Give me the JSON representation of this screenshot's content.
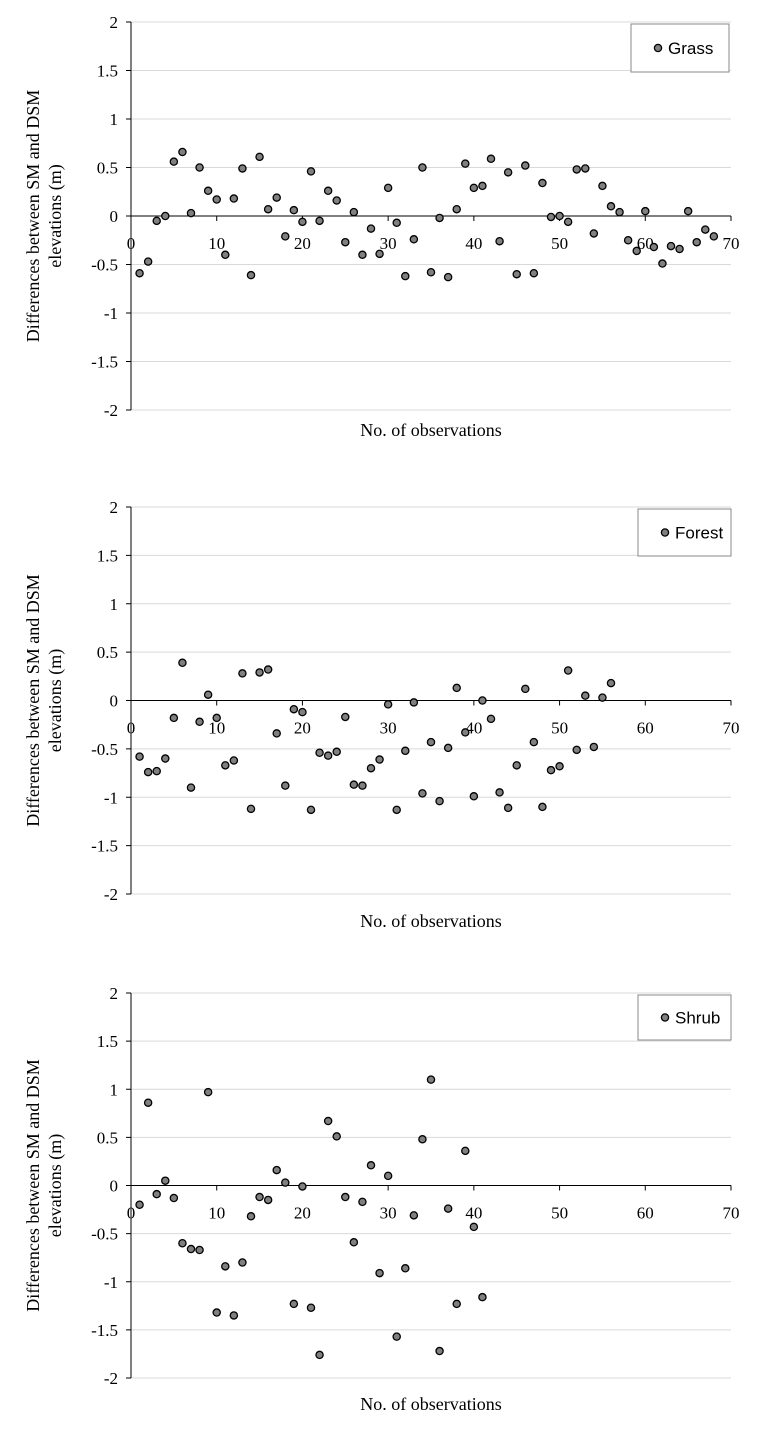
{
  "chart_data": [
    {
      "type": "scatter",
      "xlabel": "No. of observations",
      "ylabel": "Differences between SM and DSM elevations  (m)",
      "xlim": [
        0,
        70
      ],
      "ylim": [
        -2,
        2
      ],
      "xticks": [
        0,
        10,
        20,
        30,
        40,
        50,
        60,
        70
      ],
      "yticks": [
        2,
        1.5,
        1,
        0.5,
        0,
        -0.5,
        -1,
        -1.5,
        -2
      ],
      "grid": true,
      "legend": "top-right",
      "series": [
        {
          "name": "Grass",
          "color": "#808080",
          "points": [
            [
              1,
              -0.59
            ],
            [
              2,
              -0.47
            ],
            [
              3,
              -0.05
            ],
            [
              4,
              0.0
            ],
            [
              5,
              0.56
            ],
            [
              6,
              0.66
            ],
            [
              7,
              0.03
            ],
            [
              8,
              0.5
            ],
            [
              9,
              0.26
            ],
            [
              10,
              0.17
            ],
            [
              11,
              -0.4
            ],
            [
              12,
              0.18
            ],
            [
              13,
              0.49
            ],
            [
              14,
              -0.61
            ],
            [
              15,
              0.61
            ],
            [
              16,
              0.07
            ],
            [
              17,
              0.19
            ],
            [
              18,
              -0.21
            ],
            [
              19,
              0.06
            ],
            [
              20,
              -0.06
            ],
            [
              21,
              0.46
            ],
            [
              22,
              -0.05
            ],
            [
              23,
              0.26
            ],
            [
              24,
              0.16
            ],
            [
              25,
              -0.27
            ],
            [
              26,
              0.04
            ],
            [
              27,
              -0.4
            ],
            [
              28,
              -0.13
            ],
            [
              29,
              -0.39
            ],
            [
              30,
              0.29
            ],
            [
              31,
              -0.07
            ],
            [
              32,
              -0.62
            ],
            [
              33,
              -0.24
            ],
            [
              34,
              0.5
            ],
            [
              35,
              -0.58
            ],
            [
              36,
              -0.02
            ],
            [
              37,
              -0.63
            ],
            [
              38,
              0.07
            ],
            [
              39,
              0.54
            ],
            [
              40,
              0.29
            ],
            [
              41,
              0.31
            ],
            [
              42,
              0.59
            ],
            [
              43,
              -0.26
            ],
            [
              44,
              0.45
            ],
            [
              45,
              -0.6
            ],
            [
              46,
              0.52
            ],
            [
              47,
              -0.59
            ],
            [
              48,
              0.34
            ],
            [
              49,
              -0.01
            ],
            [
              50,
              0.0
            ],
            [
              51,
              -0.06
            ],
            [
              52,
              0.48
            ],
            [
              53,
              0.49
            ],
            [
              54,
              -0.18
            ],
            [
              55,
              0.31
            ],
            [
              56,
              0.1
            ],
            [
              57,
              0.04
            ],
            [
              58,
              -0.25
            ],
            [
              59,
              -0.36
            ],
            [
              60,
              0.05
            ],
            [
              61,
              -0.32
            ],
            [
              62,
              -0.49
            ],
            [
              63,
              -0.31
            ],
            [
              64,
              -0.34
            ],
            [
              65,
              0.05
            ],
            [
              66,
              -0.27
            ],
            [
              67,
              -0.14
            ],
            [
              68,
              -0.21
            ]
          ]
        }
      ]
    },
    {
      "type": "scatter",
      "xlabel": "No. of observations",
      "ylabel": "Differences between SM and DSM elevations  (m)",
      "xlim": [
        0,
        70
      ],
      "ylim": [
        -2,
        2
      ],
      "xticks": [
        0,
        10,
        20,
        30,
        40,
        50,
        60,
        70
      ],
      "yticks": [
        2,
        1.5,
        1,
        0.5,
        0,
        -0.5,
        -1,
        -1.5,
        -2
      ],
      "grid": true,
      "legend": "top-right",
      "series": [
        {
          "name": "Forest",
          "color": "#808080",
          "points": [
            [
              1,
              -0.58
            ],
            [
              2,
              -0.74
            ],
            [
              3,
              -0.73
            ],
            [
              4,
              -0.6
            ],
            [
              5,
              -0.18
            ],
            [
              6,
              0.39
            ],
            [
              7,
              -0.9
            ],
            [
              8,
              -0.22
            ],
            [
              9,
              0.06
            ],
            [
              10,
              -0.18
            ],
            [
              11,
              -0.67
            ],
            [
              12,
              -0.62
            ],
            [
              13,
              0.28
            ],
            [
              14,
              -1.12
            ],
            [
              15,
              0.29
            ],
            [
              16,
              0.32
            ],
            [
              17,
              -0.34
            ],
            [
              18,
              -0.88
            ],
            [
              19,
              -0.09
            ],
            [
              20,
              -0.12
            ],
            [
              21,
              -1.13
            ],
            [
              22,
              -0.54
            ],
            [
              23,
              -0.57
            ],
            [
              24,
              -0.53
            ],
            [
              25,
              -0.17
            ],
            [
              26,
              -0.87
            ],
            [
              27,
              -0.88
            ],
            [
              28,
              -0.7
            ],
            [
              29,
              -0.61
            ],
            [
              30,
              -0.04
            ],
            [
              31,
              -1.13
            ],
            [
              32,
              -0.52
            ],
            [
              33,
              -0.02
            ],
            [
              34,
              -0.96
            ],
            [
              35,
              -0.43
            ],
            [
              36,
              -1.04
            ],
            [
              37,
              -0.49
            ],
            [
              38,
              0.13
            ],
            [
              39,
              -0.33
            ],
            [
              40,
              -0.99
            ],
            [
              41,
              0.0
            ],
            [
              42,
              -0.19
            ],
            [
              43,
              -0.95
            ],
            [
              44,
              -1.11
            ],
            [
              45,
              -0.67
            ],
            [
              46,
              0.12
            ],
            [
              47,
              -0.43
            ],
            [
              48,
              -1.1
            ],
            [
              49,
              -0.72
            ],
            [
              50,
              -0.68
            ],
            [
              51,
              0.31
            ],
            [
              52,
              -0.51
            ],
            [
              53,
              0.05
            ],
            [
              54,
              -0.48
            ],
            [
              55,
              0.03
            ],
            [
              56,
              0.18
            ]
          ]
        }
      ]
    },
    {
      "type": "scatter",
      "xlabel": "No. of observations",
      "ylabel": "Differences between SM and DSM elevations  (m)",
      "xlim": [
        0,
        70
      ],
      "ylim": [
        -2,
        2
      ],
      "xticks": [
        0,
        10,
        20,
        30,
        40,
        50,
        60,
        70
      ],
      "yticks": [
        2,
        1.5,
        1,
        0.5,
        0,
        -0.5,
        -1,
        -1.5,
        -2
      ],
      "grid": true,
      "legend": "top-right",
      "series": [
        {
          "name": "Shrub",
          "color": "#808080",
          "points": [
            [
              1,
              -0.2
            ],
            [
              2,
              0.86
            ],
            [
              3,
              -0.09
            ],
            [
              4,
              0.05
            ],
            [
              5,
              -0.13
            ],
            [
              6,
              -0.6
            ],
            [
              7,
              -0.66
            ],
            [
              8,
              -0.67
            ],
            [
              9,
              0.97
            ],
            [
              10,
              -1.32
            ],
            [
              11,
              -0.84
            ],
            [
              12,
              -1.35
            ],
            [
              13,
              -0.8
            ],
            [
              14,
              -0.32
            ],
            [
              15,
              -0.12
            ],
            [
              16,
              -0.15
            ],
            [
              17,
              0.16
            ],
            [
              18,
              0.03
            ],
            [
              19,
              -1.23
            ],
            [
              20,
              -0.01
            ],
            [
              21,
              -1.27
            ],
            [
              22,
              -1.76
            ],
            [
              23,
              0.67
            ],
            [
              24,
              0.51
            ],
            [
              25,
              -0.12
            ],
            [
              26,
              -0.59
            ],
            [
              27,
              -0.17
            ],
            [
              28,
              0.21
            ],
            [
              29,
              -0.91
            ],
            [
              30,
              0.1
            ],
            [
              31,
              -1.57
            ],
            [
              32,
              -0.86
            ],
            [
              33,
              -0.31
            ],
            [
              34,
              0.48
            ],
            [
              35,
              1.1
            ],
            [
              36,
              -1.72
            ],
            [
              37,
              -0.24
            ],
            [
              38,
              -1.23
            ],
            [
              39,
              0.36
            ],
            [
              40,
              -0.43
            ],
            [
              41,
              -1.16
            ]
          ]
        }
      ]
    }
  ]
}
